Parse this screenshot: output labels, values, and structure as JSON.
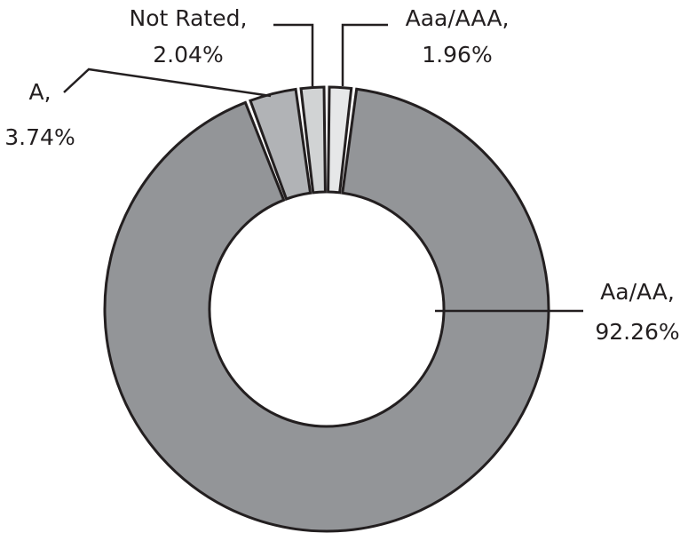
{
  "chart_data": {
    "type": "donut",
    "categories": [
      "Aaa/AAA,",
      "Aa/AA,",
      "A,",
      "Not Rated,"
    ],
    "values": [
      1.96,
      92.26,
      3.74,
      2.04
    ],
    "value_labels": [
      "1.96%",
      "92.26%",
      "3.74%",
      "2.04%"
    ],
    "colors": [
      "#e6e7e8",
      "#939598",
      "#b1b3b6",
      "#d1d3d4"
    ]
  }
}
